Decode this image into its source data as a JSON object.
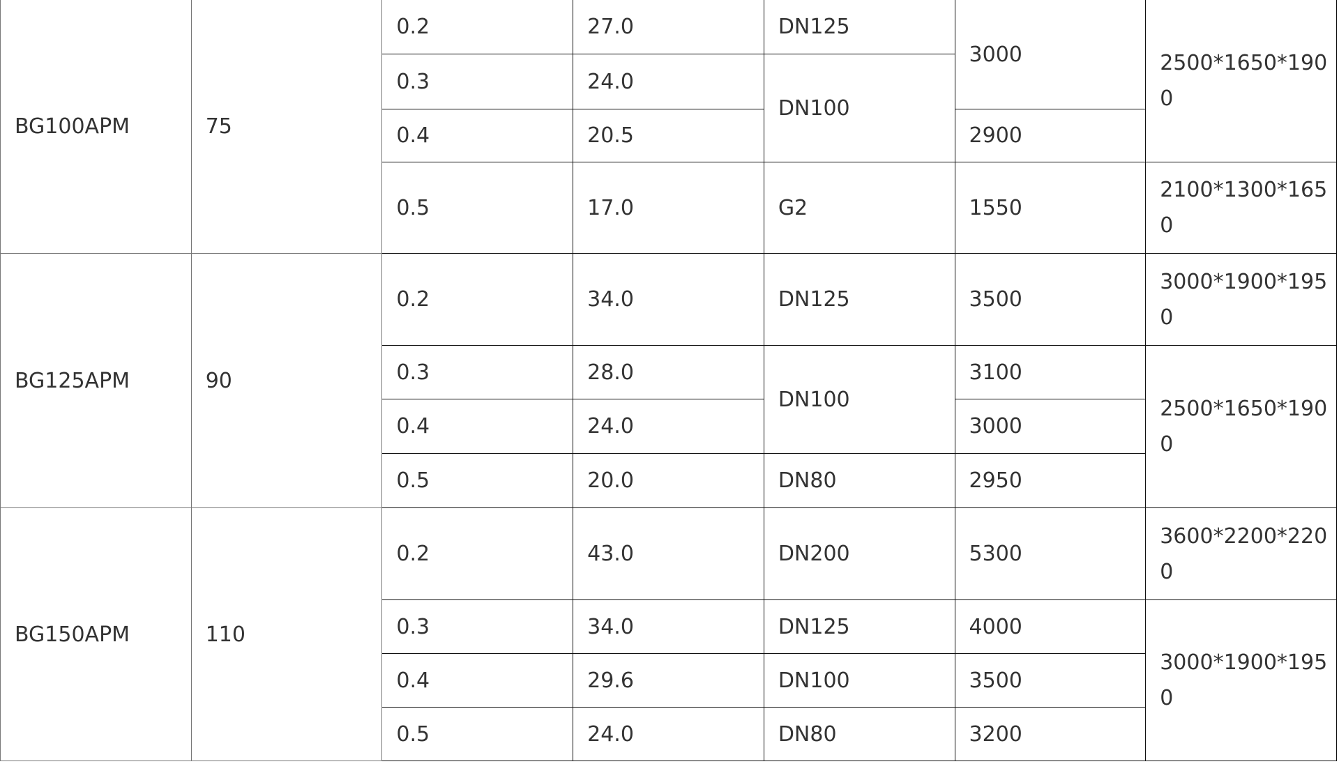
{
  "models": [
    {
      "model": "BG100APM",
      "power": "75",
      "rows": [
        {
          "pressure": "0.2",
          "flow": "27.0",
          "outlet": "DN125",
          "weight": "3000",
          "dimensions": "2500*1650*1900"
        },
        {
          "pressure": "0.3",
          "flow": "24.0",
          "outlet": "DN100"
        },
        {
          "pressure": "0.4",
          "flow": "20.5",
          "weight": "2900"
        },
        {
          "pressure": "0.5",
          "flow": "17.0",
          "outlet": "G2",
          "weight": "1550",
          "dimensions": "2100*1300*1650"
        }
      ]
    },
    {
      "model": "BG125APM",
      "power": "90",
      "rows": [
        {
          "pressure": "0.2",
          "flow": "34.0",
          "outlet": "DN125",
          "weight": "3500",
          "dimensions": "3000*1900*1950"
        },
        {
          "pressure": "0.3",
          "flow": "28.0",
          "outlet": "DN100",
          "weight": "3100",
          "dimensions": "2500*1650*1900"
        },
        {
          "pressure": "0.4",
          "flow": "24.0",
          "weight": "3000"
        },
        {
          "pressure": "0.5",
          "flow": "20.0",
          "outlet": "DN80",
          "weight": "2950"
        }
      ]
    },
    {
      "model": "BG150APM",
      "power": "110",
      "rows": [
        {
          "pressure": "0.2",
          "flow": "43.0",
          "outlet": "DN200",
          "weight": "5300",
          "dimensions": "3600*2200*2200"
        },
        {
          "pressure": "0.3",
          "flow": "34.0",
          "outlet": "DN125",
          "weight": "4000",
          "dimensions": "3000*1900*1950"
        },
        {
          "pressure": "0.4",
          "flow": "29.6",
          "outlet": "DN100",
          "weight": "3500"
        },
        {
          "pressure": "0.5",
          "flow": "24.0",
          "outlet": "DN80",
          "weight": "3200"
        }
      ]
    }
  ]
}
